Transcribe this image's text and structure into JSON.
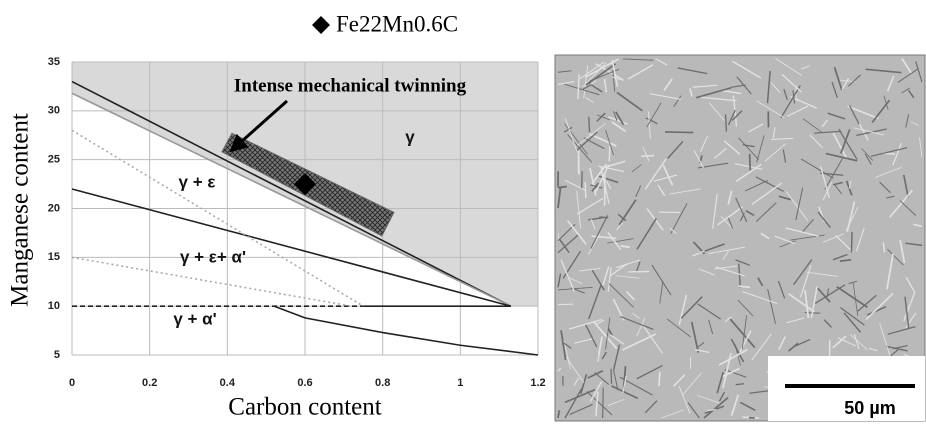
{
  "chart_data": {
    "type": "line",
    "legend_label": "Fe22Mn0.6C",
    "xlabel": "Carbon content",
    "ylabel": "Manganese content",
    "xlim": [
      0,
      1.2
    ],
    "ylim": [
      5,
      35
    ],
    "xticks": [
      0,
      0.2,
      0.4,
      0.6,
      0.8,
      1,
      1.2
    ],
    "yticks": [
      5,
      10,
      15,
      20,
      25,
      30,
      35
    ],
    "grid": true,
    "shaded_region": {
      "x": [
        0,
        1.13,
        1.2,
        1.2,
        0
      ],
      "y": [
        31.8,
        10,
        10,
        35,
        35
      ],
      "color": "#d9d9d9"
    },
    "boundaries": [
      {
        "x": [
          0,
          1.13
        ],
        "y": [
          33,
          10
        ],
        "style": "solid",
        "color": "#222222"
      },
      {
        "x": [
          0,
          1.13
        ],
        "y": [
          31.8,
          10
        ],
        "style": "solid",
        "color": "#999999"
      },
      {
        "x": [
          0,
          1.13
        ],
        "y": [
          22,
          10
        ],
        "style": "solid",
        "color": "#222222"
      },
      {
        "x": [
          0,
          0.75
        ],
        "y": [
          10,
          10
        ],
        "style": "dashed",
        "color": "#222222"
      },
      {
        "x": [
          0.75,
          1.13
        ],
        "y": [
          10,
          10
        ],
        "style": "solid",
        "color": "#222222"
      },
      {
        "x": [
          0.52,
          0.6,
          0.8,
          1,
          1.2
        ],
        "y": [
          10,
          8.8,
          7.3,
          6,
          5
        ],
        "style": "solid",
        "color": "#222222"
      },
      {
        "x": [
          0,
          0.75
        ],
        "y": [
          28,
          10
        ],
        "style": "dotted",
        "color": "#aaaaaa"
      },
      {
        "x": [
          0,
          0.72
        ],
        "y": [
          15,
          10
        ],
        "style": "dotted",
        "color": "#aaaaaa"
      }
    ],
    "twinning_zone": {
      "x": [
        0.412,
        0.829,
        0.798,
        0.386
      ],
      "y": [
        27.7,
        19.6,
        17.2,
        25.8
      ],
      "color": "#666666"
    },
    "series": [
      {
        "name": "Fe22Mn0.6C",
        "x": [
          0.6
        ],
        "y": [
          22.5
        ],
        "marker": "diamond",
        "color": "#000000"
      }
    ],
    "annotations": [
      "Intense mechanical twinning",
      "γ",
      "γ + ε",
      "γ + ε+ α'",
      "γ + α'"
    ]
  },
  "micrograph": {
    "scale_bar_label": "50 µm"
  }
}
